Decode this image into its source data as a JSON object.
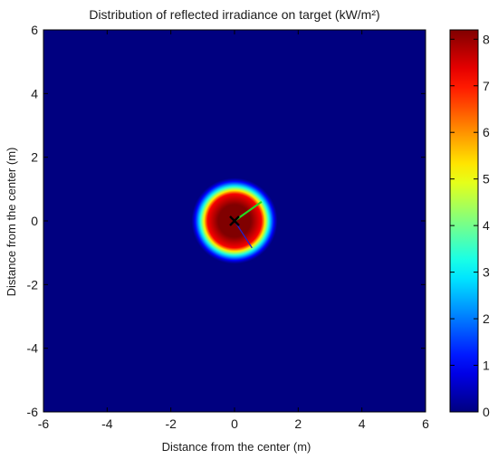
{
  "chart_data": {
    "type": "heatmap",
    "title": "Distribution of reflected irradiance on target (kW/m²)",
    "xlabel": "Distance from the center (m)",
    "ylabel": "Distance from the center (m)",
    "xlim": [
      -6,
      6
    ],
    "ylim": [
      -6,
      6
    ],
    "xticks": [
      -6,
      -4,
      -2,
      0,
      2,
      4,
      6
    ],
    "yticks": [
      -6,
      -4,
      -2,
      0,
      2,
      4,
      6
    ],
    "colormap": "jet",
    "colorbar": {
      "range": [
        0,
        8.2
      ],
      "ticks": [
        0,
        1,
        2,
        3,
        4,
        5,
        6,
        7,
        8
      ]
    },
    "background_value": 0,
    "spot": {
      "center": [
        0,
        0
      ],
      "plateau_radius_m": 0.85,
      "edge_radius_m": 1.35,
      "peak_value": 8.2
    },
    "annotations": {
      "center_marker": "x",
      "green_vector": {
        "from": [
          0,
          0
        ],
        "to": [
          0.85,
          0.6
        ],
        "color": "#22dd22"
      },
      "blue_vector": {
        "from": [
          0,
          0
        ],
        "to": [
          0.55,
          -0.85
        ],
        "color": "#2222cc"
      }
    }
  }
}
